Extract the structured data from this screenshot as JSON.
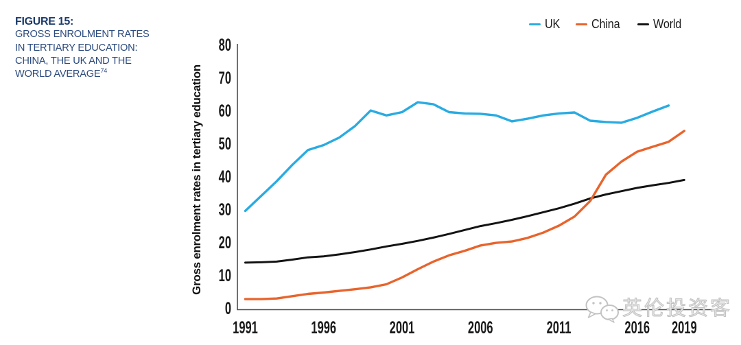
{
  "page": {
    "background": "#ffffff"
  },
  "header": {
    "figure_label": "FIGURE 15:",
    "title_lines": [
      "GROSS ENROLMENT RATES",
      "IN TERTIARY EDUCATION:",
      "CHINA, THE UK AND THE",
      "WORLD AVERAGE"
    ],
    "footnote_ref": "74",
    "label_color": "#1b3a6b",
    "title_color": "#2b4a7e"
  },
  "watermark": {
    "text": "英伦投资客",
    "icon": "wechat-icon",
    "color": "#c3c3c3"
  },
  "chart_data": {
    "type": "line",
    "title": "Gross enrolment rates in tertiary education: China, the UK and the world average",
    "ylabel": "Gross enrolment rates in tertiary education",
    "xlabel": "",
    "ylim": [
      0,
      80
    ],
    "yticks": [
      0,
      10,
      20,
      30,
      40,
      50,
      60,
      70,
      80
    ],
    "xticks": [
      1991,
      1996,
      2001,
      2006,
      2011,
      2016,
      2019
    ],
    "grid": false,
    "legend_position": "top-right",
    "axis_color": "#4d4d4e",
    "tick_color": "#1a1a1a",
    "x": [
      1991,
      1992,
      1993,
      1994,
      1995,
      1996,
      1997,
      1998,
      1999,
      2000,
      2001,
      2002,
      2003,
      2004,
      2005,
      2006,
      2007,
      2008,
      2009,
      2010,
      2011,
      2012,
      2013,
      2014,
      2015,
      2016,
      2017,
      2018,
      2019
    ],
    "series": [
      {
        "name": "UK",
        "color": "#29abe2",
        "values": [
          30,
          34.5,
          39,
          44,
          48.5,
          50,
          52.3,
          55.8,
          60.5,
          59,
          60,
          63,
          62.4,
          60,
          59.6,
          59.5,
          59,
          57.2,
          58,
          59,
          59.6,
          59.9,
          57.4,
          57,
          56.8,
          58.3,
          60.2,
          62,
          null
        ]
      },
      {
        "name": "China",
        "color": "#e8642c",
        "values": [
          3.2,
          3.2,
          3.4,
          4.1,
          4.8,
          5.2,
          5.7,
          6.2,
          6.8,
          7.7,
          9.8,
          12.3,
          14.6,
          16.5,
          17.9,
          19.5,
          20.3,
          20.7,
          21.8,
          23.4,
          25.5,
          28.3,
          33,
          41,
          45,
          48,
          49.5,
          51,
          54.3
        ]
      },
      {
        "name": "World",
        "color": "#141414",
        "values": [
          14.3,
          14.4,
          14.6,
          15.2,
          15.9,
          16.2,
          16.8,
          17.5,
          18.3,
          19.2,
          20,
          20.9,
          21.9,
          23,
          24.2,
          25.4,
          26.3,
          27.3,
          28.4,
          29.6,
          30.8,
          32.2,
          33.8,
          35,
          36,
          37,
          37.8,
          38.5,
          39.4
        ]
      }
    ]
  }
}
